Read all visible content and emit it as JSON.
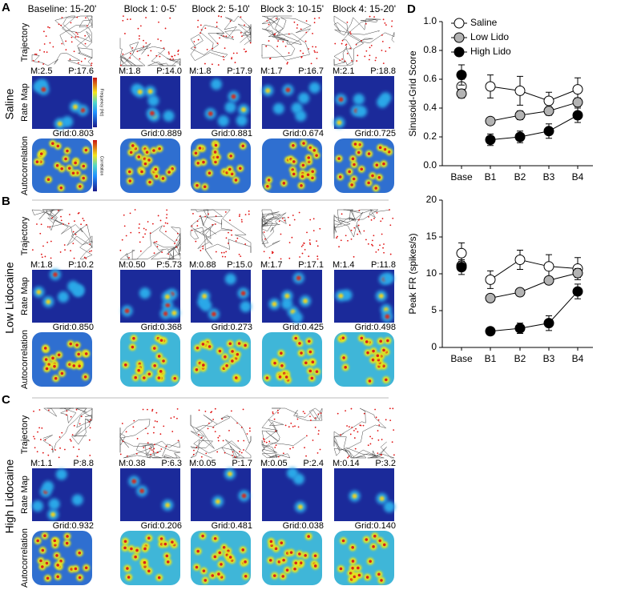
{
  "panels": [
    {
      "letter": "A",
      "condition": "Saline",
      "row_labels": [
        "Trajectory",
        "Rate Map",
        "Autocorrelation"
      ],
      "columns": [
        "Baseline: 15-20'",
        "Block 1: 0-5'",
        "Block 2: 5-10'",
        "Block 3: 10-15'",
        "Block 4: 15-20'"
      ],
      "rate_labels": [
        [
          "M:2.5",
          "P:17.6"
        ],
        [
          "M:1.8",
          "P:14.0"
        ],
        [
          "M:1.8",
          "P:17.9"
        ],
        [
          "M:1.7",
          "P:16.7"
        ],
        [
          "M:2.1",
          "P:18.8"
        ]
      ],
      "grid_labels": [
        "Grid:0.803",
        "Grid:0.889",
        "Grid:0.881",
        "Grid:0.674",
        "Grid:0.725"
      ],
      "colorbar_labels": [
        "Frequency (Hz)",
        "Correlation"
      ]
    },
    {
      "letter": "B",
      "condition": "Low Lidocaine",
      "row_labels": [
        "Trajectory",
        "Rate Map",
        "Autocorrelation"
      ],
      "rate_labels": [
        [
          "M:1.8",
          "P:10.2"
        ],
        [
          "M:0.50",
          "P:5.73"
        ],
        [
          "M:0.88",
          "P:15.0"
        ],
        [
          "M:1.7",
          "P:17.1"
        ],
        [
          "M:1.4",
          "P:11.8"
        ]
      ],
      "grid_labels": [
        "Grid:0.850",
        "Grid:0.368",
        "Grid:0.273",
        "Grid:0.425",
        "Grid:0.498"
      ]
    },
    {
      "letter": "C",
      "condition": "High Lidocaine",
      "row_labels": [
        "Trajectory",
        "Rate Map",
        "Autocorrelation"
      ],
      "rate_labels": [
        [
          "M:1.1",
          "P:8.8"
        ],
        [
          "M:0.38",
          "P:6.3"
        ],
        [
          "M:0.05",
          "P:1.7"
        ],
        [
          "M:0.05",
          "P:2.4"
        ],
        [
          "M:0.14",
          "P:3.2"
        ]
      ],
      "grid_labels": [
        "Grid:0.932",
        "Grid:0.206",
        "Grid:0.481",
        "Grid:0.038",
        "Grid:0.140"
      ]
    }
  ],
  "chart_panel": {
    "letter": "D"
  },
  "chart_data": [
    {
      "type": "line",
      "y_label": "Sinusoid-Grid Score",
      "categories": [
        "Base",
        "B1",
        "B2",
        "B3",
        "B4"
      ],
      "ylim": [
        0,
        1
      ],
      "yticks": [
        {
          "value": 0,
          "label": "0.0"
        },
        0.2,
        0.4,
        0.6,
        0.8,
        {
          "value": 1,
          "label": "1.0"
        }
      ],
      "legend": "top-right",
      "series": [
        {
          "name": "Saline",
          "color": "#ffffff",
          "values": [
            0.55,
            0.55,
            0.52,
            0.45,
            0.53
          ],
          "errors": [
            0.05,
            0.08,
            0.1,
            0.06,
            0.08
          ]
        },
        {
          "name": "Low Lido",
          "color": "#b3b3b3",
          "values": [
            0.5,
            0.31,
            0.35,
            0.38,
            0.44
          ],
          "errors": [
            0.03,
            0.02,
            0.03,
            0.03,
            0.03
          ]
        },
        {
          "name": "High Lido",
          "color": "#000000",
          "values": [
            0.63,
            0.18,
            0.2,
            0.24,
            0.35
          ],
          "errors": [
            0.07,
            0.04,
            0.04,
            0.05,
            0.05
          ]
        }
      ]
    },
    {
      "type": "line",
      "y_label": "Peak FR (spikes/s)",
      "categories": [
        "Base",
        "B1",
        "B2",
        "B3",
        "B4"
      ],
      "ylim": [
        0,
        20
      ],
      "yticks": [
        0,
        5,
        10,
        15,
        20
      ],
      "series": [
        {
          "color": "#ffffff",
          "values": [
            12.8,
            9.2,
            11.9,
            11.0,
            10.7
          ],
          "errors": [
            1.4,
            1.2,
            1.3,
            1.6,
            1.5
          ]
        },
        {
          "color": "#b3b3b3",
          "values": [
            11.1,
            6.7,
            7.5,
            9.1,
            10.1
          ],
          "errors": [
            0.6,
            0.5,
            0.5,
            0.5,
            0.6
          ]
        },
        {
          "color": "#000000",
          "values": [
            10.9,
            2.2,
            2.6,
            3.3,
            7.6
          ],
          "errors": [
            1.0,
            0.5,
            0.7,
            1.0,
            1.0
          ]
        }
      ]
    }
  ]
}
